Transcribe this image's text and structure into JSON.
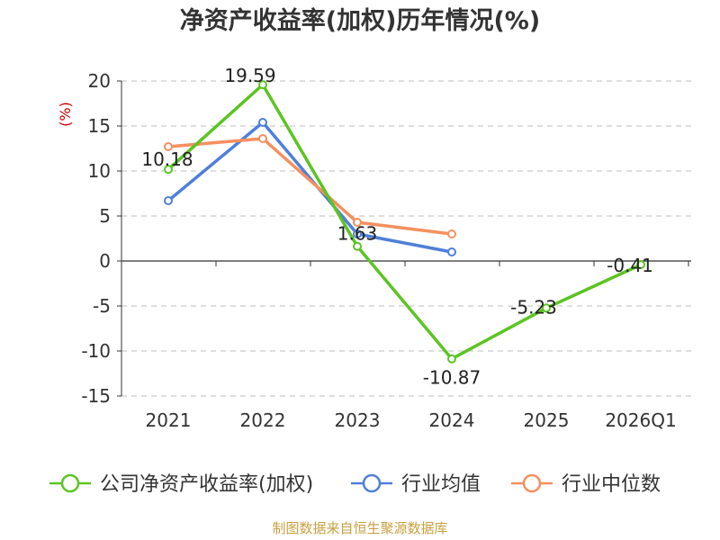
{
  "chart_data": {
    "type": "line",
    "title": "净资产收益率(加权)历年情况(%)",
    "ylabel": "(%)",
    "categories": [
      "2021",
      "2022",
      "2023",
      "2024",
      "2025",
      "2026Q1"
    ],
    "ylim": [
      -15,
      20
    ],
    "yticks": [
      20,
      15,
      10,
      5,
      0,
      -5,
      -10,
      -15
    ],
    "grid": true,
    "legend_position": "bottom",
    "series": [
      {
        "name": "公司净资产收益率(加权)",
        "color": "#5cc423",
        "values": [
          10.18,
          19.59,
          1.63,
          -10.87,
          -5.23,
          -0.41
        ],
        "labels": [
          "10.18",
          "19.59",
          "1.63",
          "-10.87",
          "-5.23",
          "-0.41"
        ]
      },
      {
        "name": "行业均值",
        "color": "#4f7fd9",
        "values": [
          6.7,
          15.4,
          3.0,
          1.0,
          null,
          null
        ]
      },
      {
        "name": "行业中位数",
        "color": "#f58f5f",
        "values": [
          12.7,
          13.6,
          4.3,
          3.0,
          null,
          null
        ]
      }
    ],
    "source": "制图数据来自恒生聚源数据库"
  }
}
